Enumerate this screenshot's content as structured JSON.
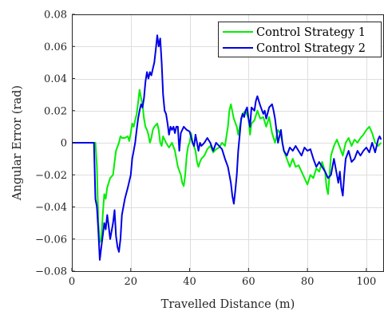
{
  "chart_data": {
    "type": "line",
    "xlabel": "Travelled Distance (m)",
    "ylabel": "Angular Error (rad)",
    "xlim": [
      0,
      106
    ],
    "ylim": [
      -0.08,
      0.08
    ],
    "x_ticks": [
      0,
      20,
      40,
      60,
      80,
      100
    ],
    "y_ticks": [
      -0.08,
      -0.06,
      -0.04,
      -0.02,
      0,
      0.02,
      0.04,
      0.06,
      0.08
    ],
    "x_tick_labels": [
      "0",
      "20",
      "40",
      "60",
      "80",
      "100"
    ],
    "y_tick_labels": [
      "−0.08",
      "−0.06",
      "−0.04",
      "−0.02",
      "0",
      "0.02",
      "0.04",
      "0.06",
      "0.08"
    ],
    "grid": true,
    "legend_position": "top-right",
    "series": [
      {
        "name": "Control Strategy 1",
        "color": "#00ee00",
        "points": [
          [
            0,
            0
          ],
          [
            8,
            0
          ],
          [
            8.5,
            -0.015
          ],
          [
            9,
            -0.05
          ],
          [
            9.5,
            -0.062
          ],
          [
            10,
            -0.06
          ],
          [
            10.5,
            -0.045
          ],
          [
            11,
            -0.032
          ],
          [
            11.5,
            -0.035
          ],
          [
            12,
            -0.028
          ],
          [
            13,
            -0.022
          ],
          [
            14,
            -0.02
          ],
          [
            14.5,
            -0.012
          ],
          [
            15,
            -0.005
          ],
          [
            16,
            0
          ],
          [
            16.5,
            0.004
          ],
          [
            17,
            0.003
          ],
          [
            18,
            0.003
          ],
          [
            19,
            0.004
          ],
          [
            19.5,
            0.001
          ],
          [
            20,
            0.006
          ],
          [
            20.5,
            0.012
          ],
          [
            21,
            0.01
          ],
          [
            22,
            0.018
          ],
          [
            22.5,
            0.025
          ],
          [
            23,
            0.033
          ],
          [
            23.5,
            0.028
          ],
          [
            24,
            0.024
          ],
          [
            24.5,
            0.015
          ],
          [
            25,
            0.01
          ],
          [
            25.5,
            0.008
          ],
          [
            26,
            0.005
          ],
          [
            26.5,
            0.0
          ],
          [
            27,
            0.003
          ],
          [
            27.5,
            0.008
          ],
          [
            28,
            0.01
          ],
          [
            29,
            0.012
          ],
          [
            29.5,
            0.008
          ],
          [
            30,
            0.0
          ],
          [
            30.5,
            -0.002
          ],
          [
            31,
            0.004
          ],
          [
            32,
            0.0
          ],
          [
            33,
            -0.003
          ],
          [
            34,
            0.0
          ],
          [
            35,
            -0.005
          ],
          [
            36,
            -0.015
          ],
          [
            37,
            -0.02
          ],
          [
            37.5,
            -0.025
          ],
          [
            38,
            -0.027
          ],
          [
            38.5,
            -0.02
          ],
          [
            39,
            -0.008
          ],
          [
            39.5,
            -0.002
          ],
          [
            40,
            0.0
          ],
          [
            40.5,
            0.006
          ],
          [
            41,
            0.0
          ],
          [
            42,
            -0.005
          ],
          [
            42.5,
            -0.012
          ],
          [
            43,
            -0.015
          ],
          [
            43.5,
            -0.012
          ],
          [
            44,
            -0.01
          ],
          [
            45,
            -0.008
          ],
          [
            46,
            -0.004
          ],
          [
            47,
            -0.002
          ],
          [
            48,
            -0.006
          ],
          [
            49,
            -0.004
          ],
          [
            50,
            -0.003
          ],
          [
            51,
            0.0
          ],
          [
            52,
            -0.002
          ],
          [
            53,
            0.01
          ],
          [
            53.5,
            0.02
          ],
          [
            54,
            0.024
          ],
          [
            55,
            0.015
          ],
          [
            56,
            0.01
          ],
          [
            56.5,
            0.005
          ],
          [
            57,
            0.01
          ],
          [
            58,
            0.018
          ],
          [
            59,
            0.02
          ],
          [
            60,
            0.015
          ],
          [
            60.5,
            0.005
          ],
          [
            61,
            0.012
          ],
          [
            62,
            0.014
          ],
          [
            63,
            0.02
          ],
          [
            64,
            0.015
          ],
          [
            65,
            0.016
          ],
          [
            66,
            0.01
          ],
          [
            67,
            0.016
          ],
          [
            68,
            0.006
          ],
          [
            69,
            0.0
          ],
          [
            70,
            0.008
          ],
          [
            71,
            0.005
          ],
          [
            72,
            -0.005
          ],
          [
            73,
            -0.01
          ],
          [
            74,
            -0.015
          ],
          [
            75,
            -0.01
          ],
          [
            76,
            -0.015
          ],
          [
            77,
            -0.014
          ],
          [
            78,
            -0.018
          ],
          [
            79,
            -0.022
          ],
          [
            80,
            -0.026
          ],
          [
            81,
            -0.02
          ],
          [
            82,
            -0.022
          ],
          [
            83,
            -0.016
          ],
          [
            84,
            -0.018
          ],
          [
            85,
            -0.012
          ],
          [
            86,
            -0.018
          ],
          [
            86.5,
            -0.028
          ],
          [
            87,
            -0.032
          ],
          [
            87.5,
            -0.02
          ],
          [
            88,
            -0.008
          ],
          [
            89,
            -0.002
          ],
          [
            90,
            0.002
          ],
          [
            91,
            -0.003
          ],
          [
            92,
            -0.008
          ],
          [
            93,
            0.0
          ],
          [
            94,
            0.003
          ],
          [
            95,
            -0.002
          ],
          [
            96,
            0.002
          ],
          [
            97,
            0.0
          ],
          [
            98,
            0.003
          ],
          [
            99,
            0.005
          ],
          [
            100,
            0.008
          ],
          [
            101,
            0.01
          ],
          [
            102,
            0.006
          ],
          [
            103,
            0.0
          ],
          [
            104,
            -0.002
          ],
          [
            105,
            0.0
          ]
        ]
      },
      {
        "name": "Control Strategy 2",
        "color": "#0000e6",
        "points": [
          [
            0,
            0
          ],
          [
            7.5,
            0
          ],
          [
            8,
            -0.035
          ],
          [
            8.5,
            -0.04
          ],
          [
            9,
            -0.055
          ],
          [
            9.5,
            -0.073
          ],
          [
            10,
            -0.065
          ],
          [
            10.5,
            -0.058
          ],
          [
            11,
            -0.05
          ],
          [
            11.5,
            -0.054
          ],
          [
            12,
            -0.045
          ],
          [
            12.5,
            -0.052
          ],
          [
            13,
            -0.06
          ],
          [
            13.5,
            -0.055
          ],
          [
            14,
            -0.05
          ],
          [
            14.5,
            -0.042
          ],
          [
            15,
            -0.058
          ],
          [
            15.5,
            -0.065
          ],
          [
            16,
            -0.068
          ],
          [
            16.5,
            -0.06
          ],
          [
            17,
            -0.045
          ],
          [
            18,
            -0.035
          ],
          [
            19,
            -0.028
          ],
          [
            20,
            -0.02
          ],
          [
            20.5,
            -0.01
          ],
          [
            21,
            -0.005
          ],
          [
            21.5,
            0.0
          ],
          [
            22,
            0.008
          ],
          [
            22.5,
            0.015
          ],
          [
            23,
            0.02
          ],
          [
            23.5,
            0.024
          ],
          [
            24,
            0.022
          ],
          [
            24.5,
            0.028
          ],
          [
            25,
            0.038
          ],
          [
            25.5,
            0.044
          ],
          [
            26,
            0.04
          ],
          [
            26.5,
            0.044
          ],
          [
            27,
            0.042
          ],
          [
            27.5,
            0.046
          ],
          [
            28,
            0.05
          ],
          [
            28.5,
            0.058
          ],
          [
            29,
            0.067
          ],
          [
            29.5,
            0.06
          ],
          [
            30,
            0.065
          ],
          [
            30.5,
            0.05
          ],
          [
            31,
            0.03
          ],
          [
            31.5,
            0.02
          ],
          [
            32,
            0.018
          ],
          [
            32.5,
            0.012
          ],
          [
            33,
            0.005
          ],
          [
            33.5,
            0.01
          ],
          [
            34,
            0.008
          ],
          [
            34.5,
            0.01
          ],
          [
            35,
            0.006
          ],
          [
            35.5,
            0.01
          ],
          [
            36,
            0.01
          ],
          [
            36.5,
            -0.005
          ],
          [
            37,
            0.006
          ],
          [
            37.5,
            0.008
          ],
          [
            38,
            0.01
          ],
          [
            39,
            0.008
          ],
          [
            40,
            0.007
          ],
          [
            41,
            0.0
          ],
          [
            41.5,
            -0.002
          ],
          [
            42,
            0.005
          ],
          [
            42.5,
            0.0
          ],
          [
            43,
            -0.005
          ],
          [
            43.5,
            0.0
          ],
          [
            44,
            -0.002
          ],
          [
            45,
            0.0
          ],
          [
            46,
            0.003
          ],
          [
            47,
            0.0
          ],
          [
            48,
            -0.005
          ],
          [
            49,
            0.0
          ],
          [
            50,
            -0.002
          ],
          [
            51,
            -0.004
          ],
          [
            52,
            -0.01
          ],
          [
            53,
            -0.015
          ],
          [
            54,
            -0.025
          ],
          [
            54.5,
            -0.033
          ],
          [
            55,
            -0.038
          ],
          [
            55.5,
            -0.03
          ],
          [
            56,
            -0.02
          ],
          [
            56.5,
            -0.005
          ],
          [
            57,
            0.005
          ],
          [
            57.5,
            0.015
          ],
          [
            58,
            0.018
          ],
          [
            58.5,
            0.016
          ],
          [
            59,
            0.02
          ],
          [
            59.5,
            0.022
          ],
          [
            60,
            0.015
          ],
          [
            60.5,
            0.01
          ],
          [
            61,
            0.022
          ],
          [
            62,
            0.02
          ],
          [
            62.5,
            0.026
          ],
          [
            63,
            0.029
          ],
          [
            63.5,
            0.026
          ],
          [
            64,
            0.023
          ],
          [
            65,
            0.018
          ],
          [
            65.5,
            0.02
          ],
          [
            66,
            0.015
          ],
          [
            67,
            0.022
          ],
          [
            68,
            0.024
          ],
          [
            68.5,
            0.02
          ],
          [
            69,
            0.015
          ],
          [
            70,
            0.0
          ],
          [
            71,
            0.008
          ],
          [
            71.5,
            0.0
          ],
          [
            72,
            -0.005
          ],
          [
            73,
            -0.008
          ],
          [
            74,
            -0.003
          ],
          [
            75,
            -0.005
          ],
          [
            76,
            -0.002
          ],
          [
            77,
            -0.005
          ],
          [
            78,
            -0.008
          ],
          [
            79,
            -0.003
          ],
          [
            80,
            -0.005
          ],
          [
            81,
            -0.004
          ],
          [
            82,
            -0.01
          ],
          [
            83,
            -0.015
          ],
          [
            84,
            -0.012
          ],
          [
            85,
            -0.015
          ],
          [
            86,
            -0.018
          ],
          [
            87,
            -0.022
          ],
          [
            88,
            -0.02
          ],
          [
            89,
            -0.01
          ],
          [
            90,
            -0.02
          ],
          [
            90.5,
            -0.025
          ],
          [
            91,
            -0.018
          ],
          [
            91.5,
            -0.028
          ],
          [
            92,
            -0.033
          ],
          [
            92.5,
            -0.02
          ],
          [
            93,
            -0.01
          ],
          [
            94,
            -0.005
          ],
          [
            95,
            -0.012
          ],
          [
            96,
            -0.01
          ],
          [
            97,
            -0.005
          ],
          [
            98,
            -0.008
          ],
          [
            99,
            -0.005
          ],
          [
            100,
            -0.003
          ],
          [
            101,
            -0.006
          ],
          [
            102,
            0.0
          ],
          [
            103,
            -0.006
          ],
          [
            104,
            0.002
          ],
          [
            104.5,
            0.004
          ],
          [
            105,
            0.002
          ]
        ]
      }
    ]
  }
}
